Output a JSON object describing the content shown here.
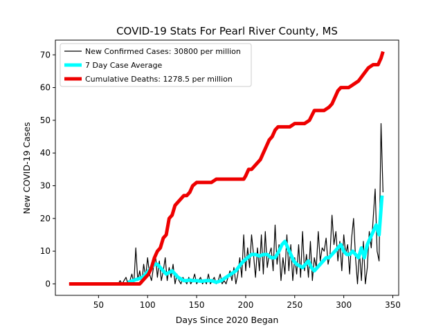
{
  "chart_data": {
    "type": "line",
    "title": "COVID-19 Stats For Pearl River County, MS",
    "xlabel": "Days Since 2020 Began",
    "ylabel": "New COVID-19 Cases",
    "xlim": [
      6,
      356
    ],
    "ylim": [
      -3.5,
      74.5
    ],
    "xticks": [
      50,
      100,
      150,
      200,
      250,
      300,
      350
    ],
    "yticks": [
      0,
      10,
      20,
      30,
      40,
      50,
      60,
      70
    ],
    "grid": false,
    "legend_position": "top-left",
    "series": [
      {
        "name": "New Confirmed Cases: 30800 per million",
        "color": "#000000",
        "x": [
          20,
          30,
          40,
          50,
          60,
          70,
          72,
          74,
          76,
          78,
          80,
          82,
          84,
          86,
          88,
          90,
          92,
          94,
          96,
          98,
          100,
          102,
          104,
          106,
          108,
          110,
          112,
          114,
          116,
          118,
          120,
          122,
          124,
          126,
          128,
          130,
          132,
          134,
          136,
          138,
          140,
          142,
          144,
          146,
          148,
          150,
          152,
          154,
          156,
          158,
          160,
          162,
          164,
          166,
          168,
          170,
          172,
          174,
          176,
          178,
          180,
          182,
          184,
          186,
          188,
          190,
          192,
          194,
          196,
          198,
          200,
          202,
          204,
          206,
          208,
          210,
          212,
          214,
          216,
          218,
          220,
          222,
          224,
          226,
          228,
          230,
          232,
          234,
          236,
          238,
          240,
          242,
          244,
          246,
          248,
          250,
          252,
          254,
          256,
          258,
          260,
          262,
          264,
          266,
          268,
          270,
          272,
          274,
          276,
          278,
          280,
          282,
          284,
          286,
          288,
          290,
          292,
          294,
          296,
          298,
          300,
          302,
          304,
          306,
          308,
          310,
          312,
          314,
          316,
          318,
          320,
          322,
          324,
          326,
          328,
          330,
          332,
          334,
          336,
          338,
          340
        ],
        "values": [
          0,
          0,
          0,
          0,
          0,
          0,
          1,
          0,
          1,
          2,
          0,
          1,
          3,
          0,
          11,
          1,
          4,
          0,
          6,
          2,
          8,
          3,
          1,
          5,
          9,
          2,
          7,
          1,
          4,
          8,
          1,
          5,
          2,
          6,
          0,
          3,
          1,
          0,
          2,
          1,
          0,
          2,
          0,
          1,
          3,
          0,
          1,
          2,
          0,
          1,
          0,
          3,
          0,
          1,
          2,
          0,
          1,
          3,
          0,
          1,
          0,
          2,
          4,
          1,
          5,
          0,
          3,
          8,
          2,
          15,
          4,
          11,
          5,
          15,
          9,
          2,
          11,
          4,
          15,
          3,
          16,
          5,
          9,
          11,
          4,
          18,
          6,
          12,
          1,
          8,
          3,
          15,
          4,
          12,
          1,
          8,
          3,
          12,
          2,
          16,
          4,
          9,
          2,
          13,
          1,
          8,
          5,
          16,
          7,
          11,
          10,
          14,
          6,
          9,
          21,
          12,
          16,
          7,
          13,
          4,
          15,
          9,
          12,
          3,
          14,
          20,
          8,
          0,
          10,
          1,
          13,
          0,
          5,
          16,
          11,
          20,
          29,
          10,
          7,
          49,
          28
        ],
        "line_width": 1.2
      },
      {
        "name": "7 Day Case Average",
        "color": "#00ffff",
        "x": [
          80,
          85,
          90,
          95,
          98,
          101,
          104,
          107,
          110,
          113,
          116,
          119,
          122,
          125,
          128,
          131,
          134,
          137,
          140,
          143,
          146,
          150,
          155,
          160,
          165,
          170,
          175,
          180,
          185,
          190,
          195,
          198,
          202,
          206,
          210,
          214,
          218,
          222,
          226,
          230,
          234,
          237,
          240,
          243,
          246,
          249,
          252,
          255,
          258,
          261,
          264,
          267,
          270,
          273,
          276,
          279,
          282,
          285,
          288,
          291,
          294,
          297,
          300,
          303,
          306,
          309,
          312,
          315,
          318,
          321,
          324,
          327,
          330,
          333,
          336,
          339
        ],
        "values": [
          0.5,
          1,
          1.5,
          2,
          3,
          4,
          5,
          6,
          6,
          5,
          4,
          3,
          3.5,
          4,
          3,
          2,
          1.5,
          1,
          1,
          1.2,
          1,
          1,
          0.8,
          1,
          1,
          0.5,
          1,
          2,
          3,
          4,
          6,
          7,
          8,
          9,
          9,
          8.5,
          9,
          9,
          8,
          8,
          10,
          12,
          13,
          11,
          9,
          7,
          6,
          5.5,
          5,
          6,
          7,
          5,
          4,
          5,
          6,
          7,
          8,
          8,
          9,
          10,
          11,
          12,
          10,
          9,
          9,
          10,
          9,
          8,
          11,
          8,
          12,
          14,
          16,
          18,
          15,
          27
        ],
        "line_width": 5
      },
      {
        "name": "Cumulative Deaths: 1278.5 per million",
        "color": "#ee0000",
        "x": [
          20,
          92,
          95,
          98,
          101,
          104,
          107,
          110,
          113,
          116,
          119,
          122,
          125,
          128,
          131,
          134,
          137,
          140,
          143,
          146,
          150,
          155,
          160,
          165,
          170,
          175,
          180,
          185,
          190,
          195,
          198,
          200,
          203,
          206,
          209,
          212,
          215,
          218,
          221,
          224,
          227,
          230,
          233,
          236,
          240,
          245,
          250,
          255,
          260,
          265,
          270,
          275,
          280,
          285,
          288,
          291,
          294,
          297,
          300,
          305,
          310,
          315,
          320,
          325,
          330,
          335,
          338,
          340
        ],
        "values": [
          0,
          0,
          1,
          2,
          3,
          5,
          8,
          10,
          11,
          14,
          15,
          20,
          21,
          24,
          25,
          26,
          27,
          27,
          28,
          30,
          31,
          31,
          31,
          31,
          32,
          32,
          32,
          32,
          32,
          32,
          32,
          33,
          35,
          35,
          36,
          37,
          38,
          40,
          42,
          44,
          45,
          47,
          48,
          48,
          48,
          48,
          49,
          49,
          49,
          50,
          53,
          53,
          53,
          54,
          55,
          57,
          59,
          60,
          60,
          60,
          61,
          62,
          64,
          66,
          67,
          67,
          69,
          71
        ],
        "line_width": 5
      }
    ]
  }
}
